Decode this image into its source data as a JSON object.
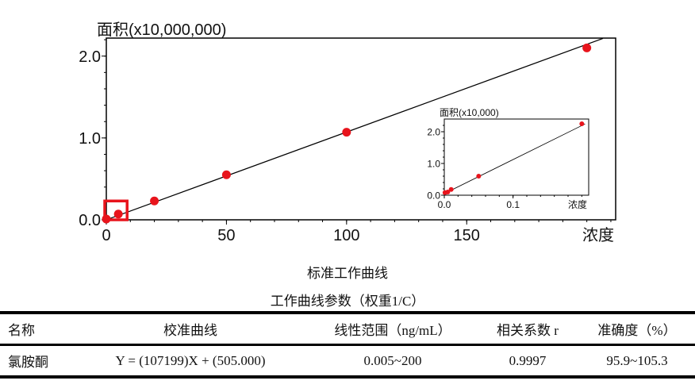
{
  "chart_data": [
    {
      "type": "scatter",
      "name": "main",
      "ylabel": "面积(x10,000,000)",
      "xlabel": "浓度",
      "xlim": [
        0,
        212
      ],
      "ylim": [
        0,
        2.22
      ],
      "xticks": [
        0,
        50,
        100,
        150
      ],
      "xtick_labels": [
        "0",
        "50",
        "100",
        "150"
      ],
      "yticks": [
        0.0,
        1.0,
        2.0
      ],
      "ytick_labels": [
        "0.0",
        "1.0",
        "2.0"
      ],
      "points": [
        {
          "x": 0.005,
          "y": 0.01
        },
        {
          "x": 5,
          "y": 0.07
        },
        {
          "x": 20,
          "y": 0.23
        },
        {
          "x": 50,
          "y": 0.55
        },
        {
          "x": 100,
          "y": 1.07
        },
        {
          "x": 200,
          "y": 2.1
        }
      ],
      "fit_line": {
        "slope": 0.0107199,
        "intercept": 5.05e-05
      },
      "highlight_box": {
        "x": [
          0,
          8
        ],
        "y": [
          0,
          0.23
        ]
      },
      "point_color": "#e8141c",
      "grid": false
    },
    {
      "type": "scatter",
      "name": "inset",
      "ylabel": "面积(x10,000)",
      "xlabel": "浓度",
      "xlim": [
        0,
        0.21
      ],
      "ylim": [
        0,
        2.4
      ],
      "xticks": [
        0.0,
        0.1
      ],
      "xtick_labels": [
        "0.0",
        "0.1"
      ],
      "yticks": [
        0.0,
        1.0,
        2.0
      ],
      "ytick_labels": [
        "0.0",
        "1.0",
        "2.0"
      ],
      "points": [
        {
          "x": 0.001,
          "y": 0.08
        },
        {
          "x": 0.005,
          "y": 0.1
        },
        {
          "x": 0.01,
          "y": 0.18
        },
        {
          "x": 0.05,
          "y": 0.6
        },
        {
          "x": 0.2,
          "y": 2.25
        }
      ],
      "fit_line": {
        "slope": 10.7199,
        "intercept": 0.0505
      },
      "point_color": "#e8141c",
      "grid": false
    }
  ],
  "captions": {
    "figure": "标准工作曲线",
    "table": "工作曲线参数（权重1/C）"
  },
  "table": {
    "headers": [
      "名称",
      "校准曲线",
      "线性范围（ng/mL）",
      "相关系数 r",
      "准确度（%）"
    ],
    "rows": [
      [
        "氯胺酮",
        "Y = (107199)X + (505.000)",
        "0.005~200",
        "0.9997",
        "95.9~105.3"
      ]
    ]
  }
}
